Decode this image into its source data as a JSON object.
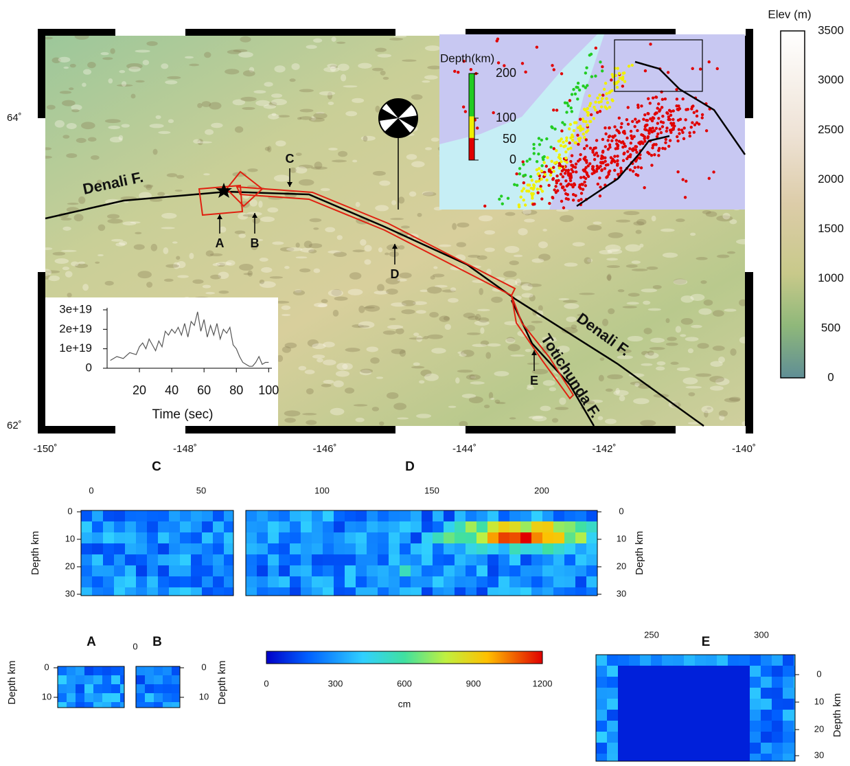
{
  "map": {
    "elevation_label": "Elev (m)",
    "elevation_ticks": [
      "3500",
      "3000",
      "2500",
      "2000",
      "1500",
      "1000",
      "500",
      "0"
    ],
    "lat_labels": [
      "64˚",
      "62˚"
    ],
    "lon_labels": [
      "-150˚",
      "-148˚",
      "-146˚",
      "-144˚",
      "-142˚",
      "-140˚"
    ],
    "faults": [
      "Denali F.",
      "Denali F.",
      "Totichunda F."
    ],
    "markers": [
      "A",
      "B",
      "C",
      "D",
      "E"
    ]
  },
  "depth_inset": {
    "title": "Depth(km)",
    "ticks": [
      "200",
      "100",
      "50",
      "0"
    ]
  },
  "chart_data": {
    "type": "line",
    "x_label": "Time (sec)",
    "x": [
      2,
      6,
      10,
      14,
      18,
      20,
      22,
      24,
      26,
      28,
      30,
      32,
      34,
      36,
      38,
      40,
      42,
      44,
      46,
      48,
      50,
      52,
      54,
      56,
      58,
      60,
      62,
      64,
      66,
      68,
      70,
      72,
      74,
      76,
      78,
      80,
      82,
      84,
      86,
      88,
      90,
      92,
      94,
      96,
      98,
      100
    ],
    "values": [
      4e+18,
      6e+18,
      5e+18,
      8e+18,
      7e+18,
      1.1e+19,
      1.3e+19,
      1e+19,
      1.5e+19,
      1.2e+19,
      9e+18,
      1.4e+19,
      1.1e+19,
      1.9e+19,
      1.7e+19,
      2e+19,
      1.8e+19,
      2.1e+19,
      1.7e+19,
      2.3e+19,
      1.6e+19,
      2.4e+19,
      2.2e+19,
      2.9e+19,
      1.9e+19,
      2.5e+19,
      1.6e+19,
      2.2e+19,
      1.7e+19,
      2.3e+19,
      1.5e+19,
      2e+19,
      1.8e+19,
      2.1e+19,
      1.2e+19,
      1e+19,
      6e+18,
      3e+18,
      2e+18,
      1e+18,
      1e+18,
      3e+18,
      6e+18,
      2e+18,
      3e+18,
      3e+18
    ],
    "xlim": [
      0,
      102
    ],
    "xticks": [
      20,
      40,
      60,
      80,
      100
    ],
    "ylim": [
      0,
      3e+19
    ],
    "yticks": [
      0,
      {
        "value": 1e+19,
        "label": "1e+19"
      },
      {
        "value": 2e+19,
        "label": "2e+19"
      },
      {
        "value": 3e+19,
        "label": "3e+19"
      }
    ],
    "color": "#555555"
  },
  "slip_panels": {
    "C": {
      "title": "C",
      "x_ticks": [
        "0",
        "50"
      ],
      "depth_ticks": [
        "0",
        "10",
        "20",
        "30"
      ],
      "depth_label": "Depth km"
    },
    "D": {
      "title": "D",
      "x_ticks": [
        "100",
        "150",
        "200"
      ],
      "depth_ticks": [
        "0",
        "10",
        "20",
        "30"
      ],
      "depth_label": "Depth km"
    },
    "A": {
      "title": "A",
      "depth_ticks": [
        "0",
        "10"
      ],
      "depth_label": "Depth km"
    },
    "B": {
      "title": "B",
      "x_ticks": [
        "0"
      ],
      "depth_ticks": [
        "0",
        "10"
      ],
      "depth_label": "Depth km"
    },
    "E": {
      "title": "E",
      "x_ticks": [
        "250",
        "300"
      ],
      "depth_ticks": [
        "0",
        "10",
        "20",
        "30"
      ],
      "depth_label": "Depth km"
    }
  },
  "slip_colorbar": {
    "ticks": [
      "0",
      "300",
      "600",
      "900",
      "1200"
    ],
    "unit": "cm"
  }
}
